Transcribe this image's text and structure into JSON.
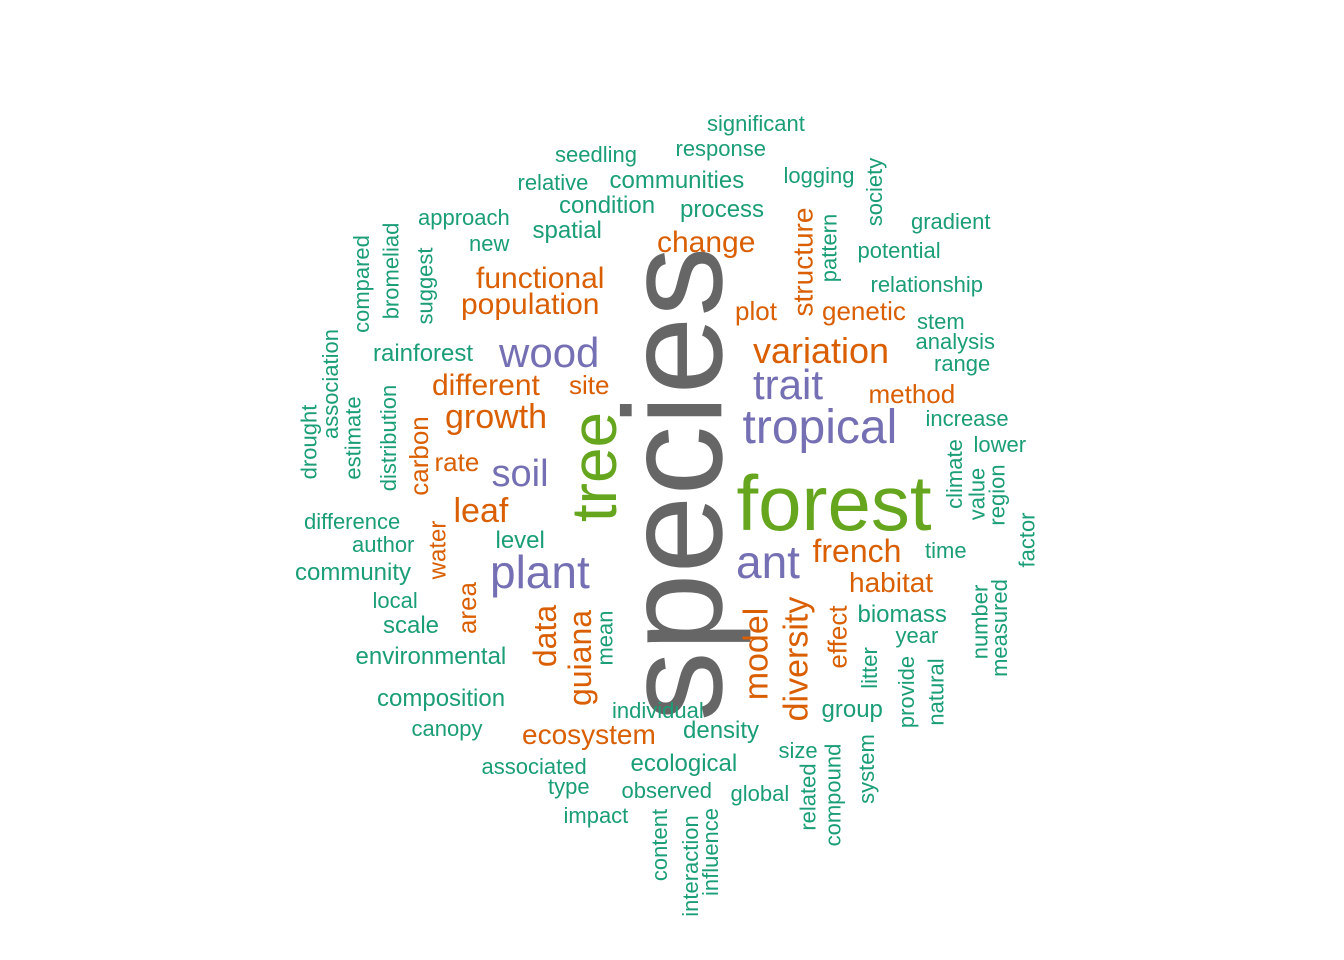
{
  "palette": {
    "teal": "#1b9e77",
    "orange": "#d95f02",
    "purple": "#7570b3",
    "green": "#66a61e",
    "gray": "#666666"
  },
  "words": [
    {
      "text": "species",
      "color": "gray",
      "vertical": true
    },
    {
      "text": "forest",
      "color": "green",
      "vertical": false
    },
    {
      "text": "tree",
      "color": "green",
      "vertical": true
    },
    {
      "text": "tropical",
      "color": "purple",
      "vertical": false
    },
    {
      "text": "plant",
      "color": "purple",
      "vertical": false
    },
    {
      "text": "wood",
      "color": "purple",
      "vertical": false
    },
    {
      "text": "ant",
      "color": "purple",
      "vertical": false
    },
    {
      "text": "trait",
      "color": "purple",
      "vertical": false
    },
    {
      "text": "soil",
      "color": "purple",
      "vertical": false
    },
    {
      "text": "variation",
      "color": "orange",
      "vertical": false
    },
    {
      "text": "growth",
      "color": "orange",
      "vertical": false
    },
    {
      "text": "population",
      "color": "orange",
      "vertical": false
    },
    {
      "text": "functional",
      "color": "orange",
      "vertical": false
    },
    {
      "text": "different",
      "color": "orange",
      "vertical": false
    },
    {
      "text": "change",
      "color": "orange",
      "vertical": false
    },
    {
      "text": "french",
      "color": "orange",
      "vertical": false
    },
    {
      "text": "leaf",
      "color": "orange",
      "vertical": false
    },
    {
      "text": "ecosystem",
      "color": "orange",
      "vertical": false
    },
    {
      "text": "habitat",
      "color": "orange",
      "vertical": false
    },
    {
      "text": "method",
      "color": "orange",
      "vertical": false
    },
    {
      "text": "genetic",
      "color": "orange",
      "vertical": false
    },
    {
      "text": "plot",
      "color": "orange",
      "vertical": false
    },
    {
      "text": "site",
      "color": "orange",
      "vertical": false
    },
    {
      "text": "rate",
      "color": "orange",
      "vertical": false
    },
    {
      "text": "guiana",
      "color": "orange",
      "vertical": true
    },
    {
      "text": "diversity",
      "color": "orange",
      "vertical": true
    },
    {
      "text": "model",
      "color": "orange",
      "vertical": true
    },
    {
      "text": "data",
      "color": "orange",
      "vertical": true
    },
    {
      "text": "structure",
      "color": "orange",
      "vertical": true
    },
    {
      "text": "effect",
      "color": "orange",
      "vertical": true
    },
    {
      "text": "carbon",
      "color": "orange",
      "vertical": true
    },
    {
      "text": "area",
      "color": "orange",
      "vertical": true
    },
    {
      "text": "water",
      "color": "orange",
      "vertical": true
    },
    {
      "text": "significant",
      "color": "teal",
      "vertical": false
    },
    {
      "text": "response",
      "color": "teal",
      "vertical": false
    },
    {
      "text": "seedling",
      "color": "teal",
      "vertical": false
    },
    {
      "text": "logging",
      "color": "teal",
      "vertical": false
    },
    {
      "text": "relative",
      "color": "teal",
      "vertical": false
    },
    {
      "text": "communities",
      "color": "teal",
      "vertical": false
    },
    {
      "text": "condition",
      "color": "teal",
      "vertical": false
    },
    {
      "text": "process",
      "color": "teal",
      "vertical": false
    },
    {
      "text": "approach",
      "color": "teal",
      "vertical": false
    },
    {
      "text": "gradient",
      "color": "teal",
      "vertical": false
    },
    {
      "text": "spatial",
      "color": "teal",
      "vertical": false
    },
    {
      "text": "new",
      "color": "teal",
      "vertical": false
    },
    {
      "text": "potential",
      "color": "teal",
      "vertical": false
    },
    {
      "text": "relationship",
      "color": "teal",
      "vertical": false
    },
    {
      "text": "stem",
      "color": "teal",
      "vertical": false
    },
    {
      "text": "analysis",
      "color": "teal",
      "vertical": false
    },
    {
      "text": "rainforest",
      "color": "teal",
      "vertical": false
    },
    {
      "text": "range",
      "color": "teal",
      "vertical": false
    },
    {
      "text": "increase",
      "color": "teal",
      "vertical": false
    },
    {
      "text": "lower",
      "color": "teal",
      "vertical": false
    },
    {
      "text": "difference",
      "color": "teal",
      "vertical": false
    },
    {
      "text": "author",
      "color": "teal",
      "vertical": false
    },
    {
      "text": "level",
      "color": "teal",
      "vertical": false
    },
    {
      "text": "time",
      "color": "teal",
      "vertical": false
    },
    {
      "text": "community",
      "color": "teal",
      "vertical": false
    },
    {
      "text": "local",
      "color": "teal",
      "vertical": false
    },
    {
      "text": "biomass",
      "color": "teal",
      "vertical": false
    },
    {
      "text": "scale",
      "color": "teal",
      "vertical": false
    },
    {
      "text": "year",
      "color": "teal",
      "vertical": false
    },
    {
      "text": "environmental",
      "color": "teal",
      "vertical": false
    },
    {
      "text": "composition",
      "color": "teal",
      "vertical": false
    },
    {
      "text": "individual",
      "color": "teal",
      "vertical": false
    },
    {
      "text": "group",
      "color": "teal",
      "vertical": false
    },
    {
      "text": "canopy",
      "color": "teal",
      "vertical": false
    },
    {
      "text": "density",
      "color": "teal",
      "vertical": false
    },
    {
      "text": "size",
      "color": "teal",
      "vertical": false
    },
    {
      "text": "associated",
      "color": "teal",
      "vertical": false
    },
    {
      "text": "ecological",
      "color": "teal",
      "vertical": false
    },
    {
      "text": "type",
      "color": "teal",
      "vertical": false
    },
    {
      "text": "observed",
      "color": "teal",
      "vertical": false
    },
    {
      "text": "global",
      "color": "teal",
      "vertical": false
    },
    {
      "text": "impact",
      "color": "teal",
      "vertical": false
    },
    {
      "text": "society",
      "color": "teal",
      "vertical": true
    },
    {
      "text": "pattern",
      "color": "teal",
      "vertical": true
    },
    {
      "text": "bromeliad",
      "color": "teal",
      "vertical": true
    },
    {
      "text": "compared",
      "color": "teal",
      "vertical": true
    },
    {
      "text": "suggest",
      "color": "teal",
      "vertical": true
    },
    {
      "text": "association",
      "color": "teal",
      "vertical": true
    },
    {
      "text": "drought",
      "color": "teal",
      "vertical": true
    },
    {
      "text": "estimate",
      "color": "teal",
      "vertical": true
    },
    {
      "text": "distribution",
      "color": "teal",
      "vertical": true
    },
    {
      "text": "climate",
      "color": "teal",
      "vertical": true
    },
    {
      "text": "value",
      "color": "teal",
      "vertical": true
    },
    {
      "text": "region",
      "color": "teal",
      "vertical": true
    },
    {
      "text": "factor",
      "color": "teal",
      "vertical": true
    },
    {
      "text": "number",
      "color": "teal",
      "vertical": true
    },
    {
      "text": "measured",
      "color": "teal",
      "vertical": true
    },
    {
      "text": "mean",
      "color": "teal",
      "vertical": true
    },
    {
      "text": "litter",
      "color": "teal",
      "vertical": true
    },
    {
      "text": "provide",
      "color": "teal",
      "vertical": true
    },
    {
      "text": "natural",
      "color": "teal",
      "vertical": true
    },
    {
      "text": "system",
      "color": "teal",
      "vertical": true
    },
    {
      "text": "compound",
      "color": "teal",
      "vertical": true
    },
    {
      "text": "related",
      "color": "teal",
      "vertical": true
    },
    {
      "text": "content",
      "color": "teal",
      "vertical": true
    },
    {
      "text": "interaction",
      "color": "teal",
      "vertical": true
    },
    {
      "text": "influence",
      "color": "teal",
      "vertical": true
    }
  ]
}
